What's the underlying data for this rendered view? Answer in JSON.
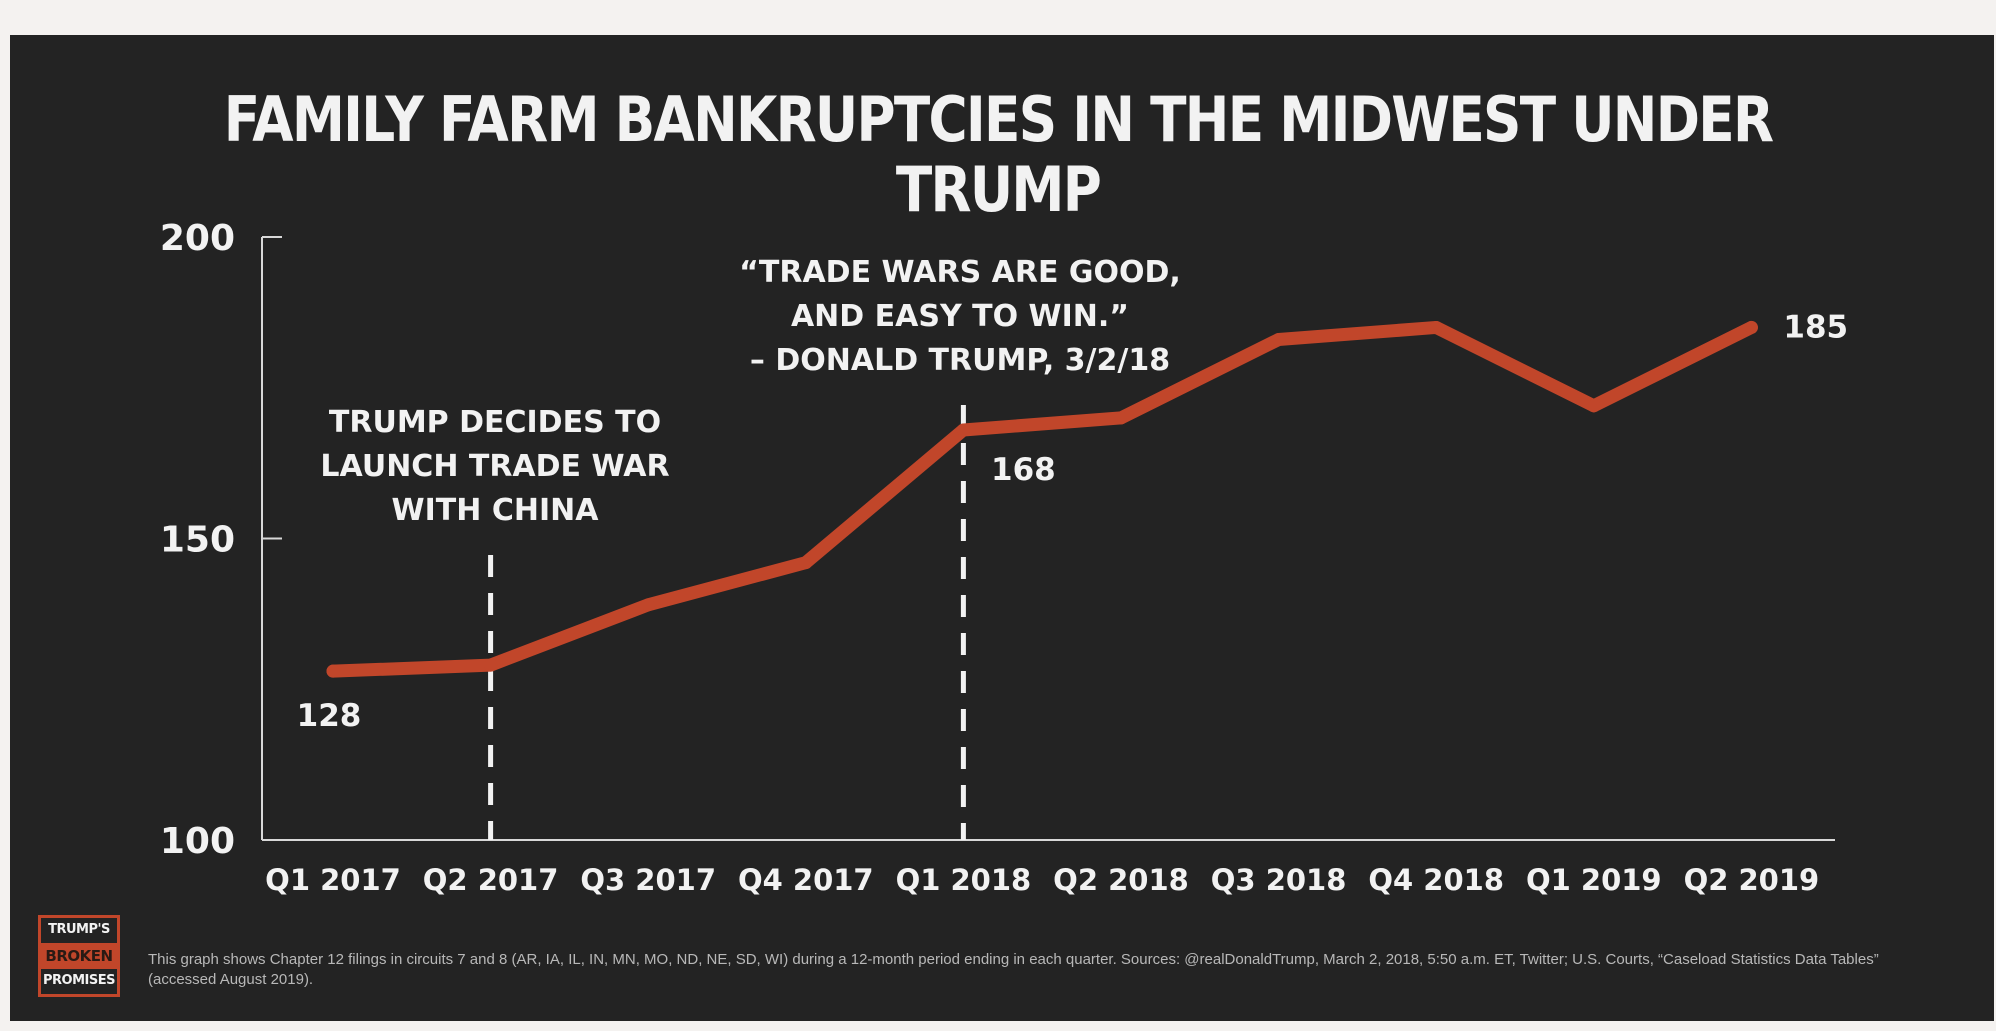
{
  "title": "FAMILY FARM BANKRUPTCIES IN THE MIDWEST UNDER TRUMP",
  "chart_data": {
    "type": "line",
    "title": "FAMILY FARM BANKRUPTCIES IN THE MIDWEST UNDER TRUMP",
    "xlabel": "",
    "ylabel": "",
    "categories": [
      "Q1 2017",
      "Q2 2017",
      "Q3 2017",
      "Q4 2017",
      "Q1 2018",
      "Q2 2018",
      "Q3 2018",
      "Q4 2018",
      "Q1 2019",
      "Q2 2019"
    ],
    "values": [
      128,
      129,
      139,
      146,
      168,
      170,
      183,
      185,
      172,
      185
    ],
    "ylim": [
      100,
      200
    ],
    "yticks": [
      100,
      150,
      200
    ],
    "data_labels": [
      {
        "index": 0,
        "text": "128"
      },
      {
        "index": 4,
        "text": "168"
      },
      {
        "index": 9,
        "text": "185"
      }
    ],
    "annotations": [
      {
        "category": "Q2 2017",
        "lines": [
          "TRUMP DECIDES TO",
          "LAUNCH TRADE WAR",
          "WITH CHINA"
        ]
      },
      {
        "category": "Q1 2018",
        "lines": [
          "“TRADE WARS ARE GOOD,",
          "AND EASY TO WIN.”",
          "– DONALD TRUMP, 3/2/18"
        ]
      }
    ],
    "grid": false,
    "line_color": "#c1462a"
  },
  "logo": {
    "line1": "TRUMP'S",
    "line2": "BROKEN",
    "line3": "PROMISES"
  },
  "footnote": "This graph shows Chapter 12 filings in circuits 7 and 8 (AR, IA, IL, IN, MN, MO, ND, NE, SD, WI) during a 12-month period ending in each quarter. Sources: @realDonaldTrump, March 2, 2018, 5:50 a.m. ET, Twitter; U.S. Courts, “Caseload Statistics Data Tables” (accessed August 2019).",
  "colors": {
    "background": "#232323",
    "line": "#c1462a",
    "text": "#f2f2f2",
    "accent": "#c1462a"
  }
}
